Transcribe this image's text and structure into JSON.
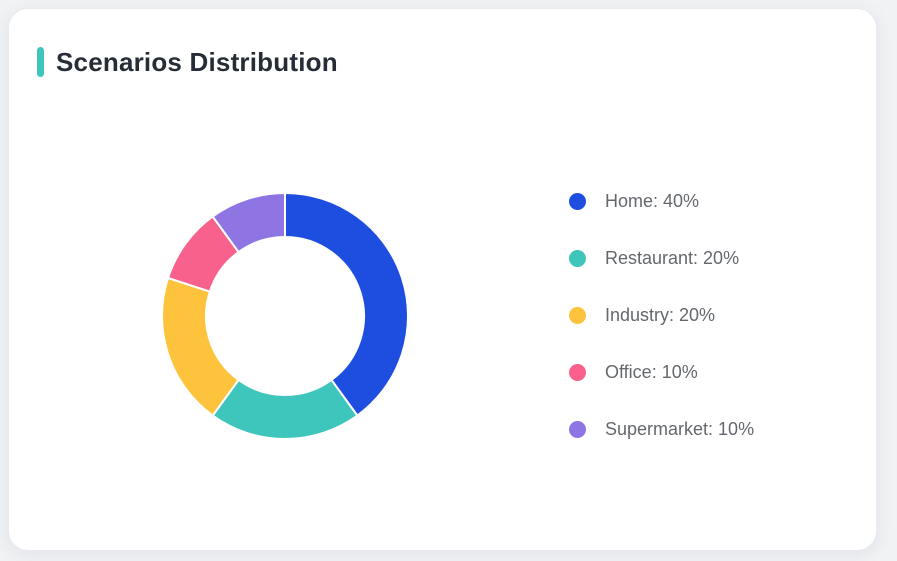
{
  "card": {
    "title": "Scenarios Distribution",
    "accent_color": "#3EC6BC"
  },
  "chart_data": {
    "type": "pie",
    "subtype": "donut",
    "title": "Scenarios Distribution",
    "categories": [
      "Home",
      "Restaurant",
      "Industry",
      "Office",
      "Supermarket"
    ],
    "values": [
      40,
      20,
      20,
      10,
      10
    ],
    "unit": "%",
    "series": [
      {
        "name": "Home",
        "value": 40,
        "color": "#1E4EE0",
        "label": "Home: 40%"
      },
      {
        "name": "Restaurant",
        "value": 20,
        "color": "#3FC6BC",
        "label": "Restaurant: 20%"
      },
      {
        "name": "Industry",
        "value": 20,
        "color": "#FDC33C",
        "label": "Industry: 20%"
      },
      {
        "name": "Office",
        "value": 10,
        "color": "#F8618C",
        "label": "Office: 10%"
      },
      {
        "name": "Supermarket",
        "value": 10,
        "color": "#8F75E4",
        "label": "Supermarket: 10%"
      }
    ],
    "start_angle_deg": 0,
    "direction": "clockwise",
    "inner_radius_ratio": 0.64,
    "legend_position": "right",
    "slice_gap_color": "#FFFFFF"
  }
}
